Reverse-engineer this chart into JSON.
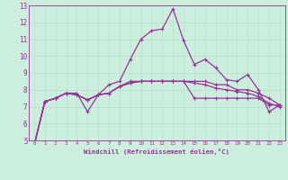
{
  "xlabel": "Windchill (Refroidissement éolien,°C)",
  "bg_color": "#cceedd",
  "line_color": "#993399",
  "grid_color": "#aaddcc",
  "x_hours": [
    0,
    1,
    2,
    3,
    4,
    5,
    6,
    7,
    8,
    9,
    10,
    11,
    12,
    13,
    14,
    15,
    16,
    17,
    18,
    19,
    20,
    21,
    22,
    23
  ],
  "series1": [
    4.7,
    7.3,
    7.5,
    7.8,
    7.8,
    6.7,
    7.7,
    8.3,
    8.5,
    9.8,
    11.0,
    11.5,
    11.6,
    12.8,
    10.9,
    9.5,
    9.8,
    9.3,
    8.6,
    8.5,
    8.9,
    8.0,
    6.7,
    7.1
  ],
  "series2": [
    4.7,
    7.3,
    7.5,
    7.8,
    7.7,
    7.4,
    7.7,
    7.8,
    8.2,
    8.5,
    8.5,
    8.5,
    8.5,
    8.5,
    8.5,
    8.5,
    8.5,
    8.3,
    8.3,
    8.0,
    8.0,
    7.8,
    7.5,
    7.1
  ],
  "series3": [
    4.7,
    7.3,
    7.5,
    7.8,
    7.7,
    7.4,
    7.7,
    7.8,
    8.2,
    8.4,
    8.5,
    8.5,
    8.5,
    8.5,
    8.5,
    8.4,
    8.3,
    8.1,
    8.0,
    7.9,
    7.8,
    7.6,
    7.2,
    7.0
  ],
  "series4": [
    4.7,
    7.3,
    7.5,
    7.8,
    7.7,
    7.4,
    7.7,
    7.8,
    8.2,
    8.4,
    8.5,
    8.5,
    8.5,
    8.5,
    8.5,
    7.5,
    7.5,
    7.5,
    7.5,
    7.5,
    7.5,
    7.5,
    7.1,
    7.1
  ],
  "ylim": [
    5,
    13
  ],
  "yticks": [
    5,
    6,
    7,
    8,
    9,
    10,
    11,
    12,
    13
  ],
  "xticks": [
    0,
    1,
    2,
    3,
    4,
    5,
    6,
    7,
    8,
    9,
    10,
    11,
    12,
    13,
    14,
    15,
    16,
    17,
    18,
    19,
    20,
    21,
    22,
    23
  ]
}
